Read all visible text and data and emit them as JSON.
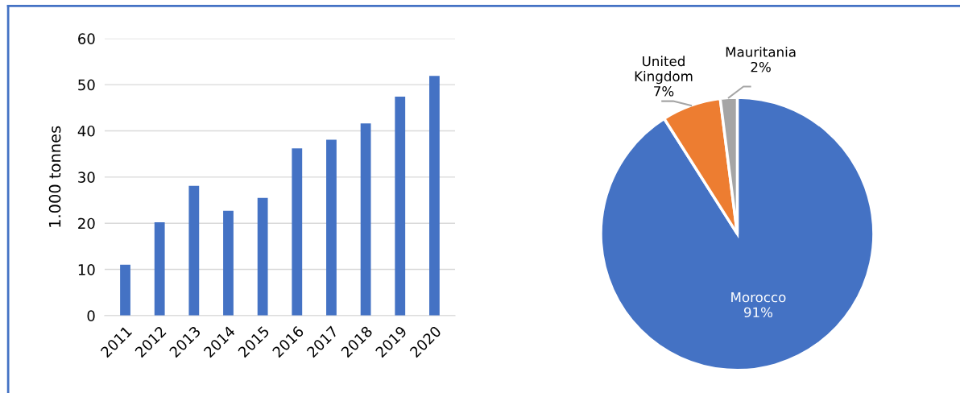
{
  "chart_data": [
    {
      "type": "bar",
      "ylabel": "1.000 tonnes",
      "categories": [
        "2011",
        "2012",
        "2013",
        "2014",
        "2015",
        "2016",
        "2017",
        "2018",
        "2019",
        "2020"
      ],
      "values": [
        11.0,
        20.2,
        28.1,
        22.7,
        25.5,
        36.2,
        38.1,
        41.6,
        47.4,
        51.9
      ],
      "color": "#4472c4",
      "ylim": [
        0,
        60
      ],
      "yticks": [
        0,
        10,
        20,
        30,
        40,
        50,
        60
      ],
      "grid": "y"
    },
    {
      "type": "pie",
      "categories": [
        "Morocco",
        "United Kingdom",
        "Mauritania"
      ],
      "values": [
        91,
        7,
        2
      ],
      "colors": [
        "#4472c4",
        "#ed7d31",
        "#a5a5a5"
      ],
      "value_labels": [
        "91%",
        "7%",
        "2%"
      ]
    }
  ]
}
